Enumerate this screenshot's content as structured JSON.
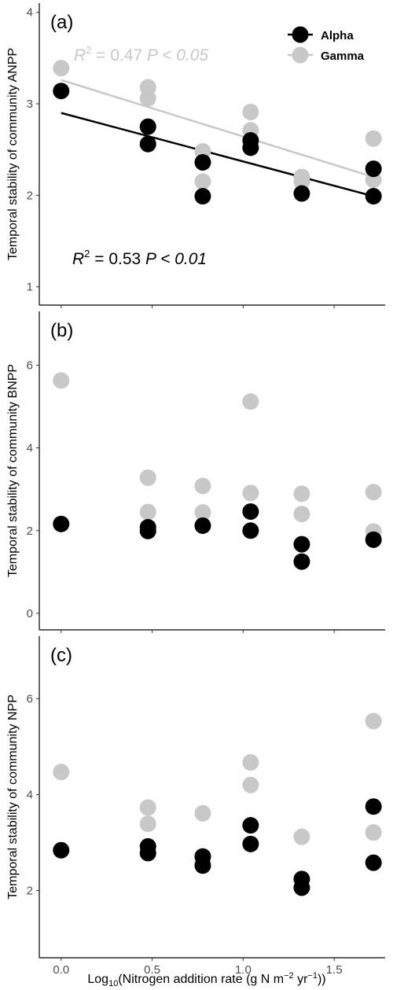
{
  "legend": [
    {
      "label": "Alpha",
      "color": "#000000"
    },
    {
      "label": "Gamma",
      "color": "#c8c8c8"
    }
  ],
  "xlabel_parts": {
    "prefix": "Log",
    "sub": "10",
    "mid": "(Nitrogen addition rate (g N m",
    "sup1": "−2",
    "mid2": " yr",
    "sup2": "−1",
    "suffix": "))"
  },
  "x_ticks": [
    "0.0",
    "0.5",
    "1.0",
    "1.5"
  ],
  "chart_data": [
    {
      "type": "scatter",
      "panel_label": "(a)",
      "ylabel": "Temporal stability of community ANPP",
      "xlim": [
        -0.12,
        1.78
      ],
      "ylim": [
        0.8,
        4.1
      ],
      "y_ticks": [
        1,
        2,
        3,
        4
      ],
      "x_ticks": [
        0.0,
        0.5,
        1.0,
        1.5
      ],
      "series": [
        {
          "name": "Alpha",
          "color": "#000000",
          "points": [
            [
              0,
              3.14
            ],
            [
              0.477,
              2.75
            ],
            [
              0.477,
              2.56
            ],
            [
              0.778,
              2.36
            ],
            [
              0.778,
              1.99
            ],
            [
              1.041,
              2.6
            ],
            [
              1.041,
              2.52
            ],
            [
              1.322,
              2.02
            ],
            [
              1.716,
              2.29
            ],
            [
              1.716,
              1.99
            ]
          ],
          "fit": [
            [
              0,
              2.9
            ],
            [
              1.716,
              1.99
            ]
          ]
        },
        {
          "name": "Gamma",
          "color": "#c8c8c8",
          "points": [
            [
              0,
              3.39
            ],
            [
              0.477,
              3.18
            ],
            [
              0.477,
              3.06
            ],
            [
              0.778,
              2.48
            ],
            [
              0.778,
              2.15
            ],
            [
              1.041,
              2.91
            ],
            [
              1.041,
              2.71
            ],
            [
              1.322,
              2.2
            ],
            [
              1.322,
              2.15
            ],
            [
              1.716,
              2.62
            ],
            [
              1.716,
              2.17
            ]
          ],
          "fit": [
            [
              0,
              3.26
            ],
            [
              1.716,
              2.2
            ]
          ]
        }
      ],
      "annotations": [
        {
          "series": "Gamma",
          "r2": "0.47",
          "p": "P < 0.05"
        },
        {
          "series": "Alpha",
          "r2": "0.53",
          "p": "P < 0.01"
        }
      ]
    },
    {
      "type": "scatter",
      "panel_label": "(b)",
      "ylabel": "Temporal stability of community BNPP",
      "xlim": [
        -0.12,
        1.78
      ],
      "ylim": [
        -0.4,
        7.3
      ],
      "y_ticks": [
        0,
        2,
        4,
        6
      ],
      "x_ticks": [
        0.0,
        0.5,
        1.0,
        1.5
      ],
      "series": [
        {
          "name": "Alpha",
          "color": "#000000",
          "points": [
            [
              0,
              2.16
            ],
            [
              0.477,
              2.08
            ],
            [
              0.477,
              1.99
            ],
            [
              0.778,
              2.12
            ],
            [
              1.041,
              2.46
            ],
            [
              1.041,
              2.0
            ],
            [
              1.322,
              1.67
            ],
            [
              1.322,
              1.25
            ],
            [
              1.716,
              1.78
            ]
          ]
        },
        {
          "name": "Gamma",
          "color": "#c8c8c8",
          "points": [
            [
              0,
              5.63
            ],
            [
              0.477,
              3.28
            ],
            [
              0.477,
              2.45
            ],
            [
              0.778,
              3.08
            ],
            [
              0.778,
              2.44
            ],
            [
              1.041,
              5.12
            ],
            [
              1.041,
              2.91
            ],
            [
              1.322,
              2.89
            ],
            [
              1.322,
              2.4
            ],
            [
              1.716,
              2.93
            ],
            [
              1.716,
              1.98
            ]
          ]
        }
      ]
    },
    {
      "type": "scatter",
      "panel_label": "(c)",
      "ylabel": "Temporal stability of community NPP",
      "xlim": [
        -0.12,
        1.78
      ],
      "ylim": [
        0.6,
        7.3
      ],
      "y_ticks": [
        2,
        4,
        6
      ],
      "x_ticks": [
        0.0,
        0.5,
        1.0,
        1.5
      ],
      "series": [
        {
          "name": "Alpha",
          "color": "#000000",
          "points": [
            [
              0,
              2.84
            ],
            [
              0.477,
              2.92
            ],
            [
              0.477,
              2.78
            ],
            [
              0.778,
              2.71
            ],
            [
              0.778,
              2.52
            ],
            [
              1.041,
              3.36
            ],
            [
              1.041,
              2.97
            ],
            [
              1.322,
              2.24
            ],
            [
              1.322,
              2.06
            ],
            [
              1.716,
              3.75
            ],
            [
              1.716,
              2.58
            ]
          ]
        },
        {
          "name": "Gamma",
          "color": "#c8c8c8",
          "points": [
            [
              0,
              4.47
            ],
            [
              0.477,
              3.73
            ],
            [
              0.477,
              3.39
            ],
            [
              0.778,
              3.61
            ],
            [
              0.778,
              2.59
            ],
            [
              1.041,
              4.67
            ],
            [
              1.041,
              4.2
            ],
            [
              1.322,
              3.12
            ],
            [
              1.716,
              5.53
            ],
            [
              1.716,
              3.21
            ]
          ]
        }
      ]
    }
  ]
}
